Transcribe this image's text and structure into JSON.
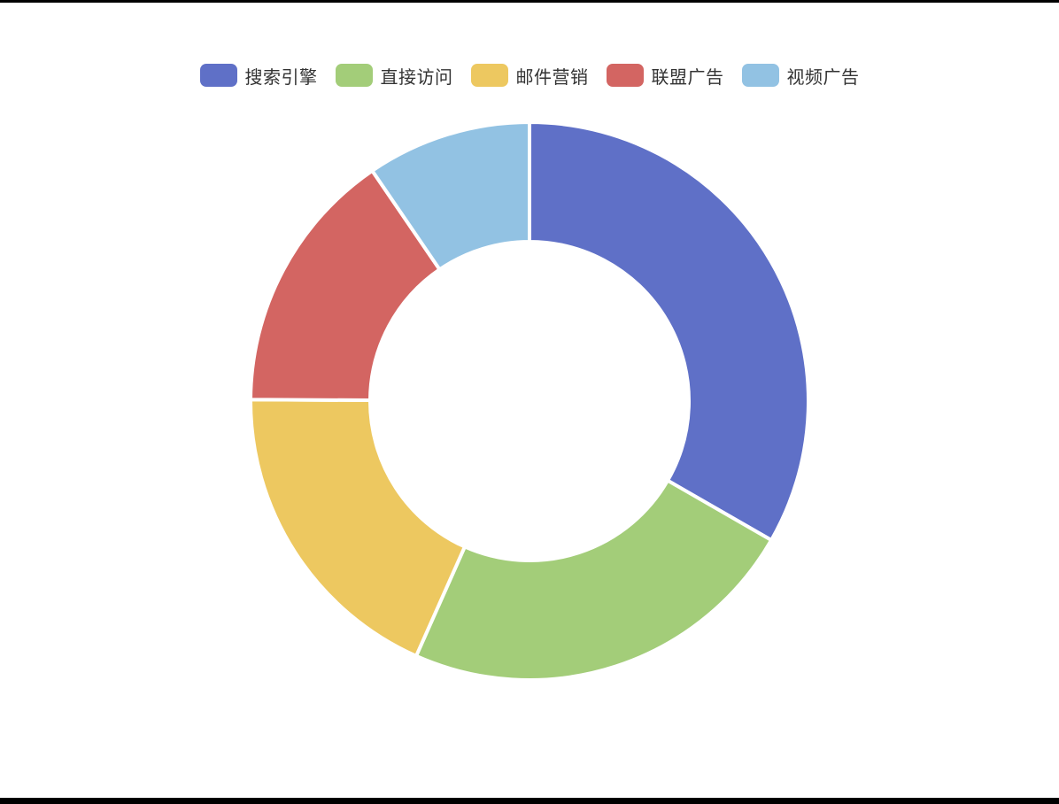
{
  "chart_data": {
    "type": "pie",
    "variant": "donut",
    "title": "",
    "legend_position": "top-center",
    "categories": [
      "搜索引擎",
      "直接访问",
      "邮件营销",
      "联盟广告",
      "视频广告"
    ],
    "values": [
      1048,
      735,
      580,
      484,
      300
    ],
    "colors": [
      "#5f70c7",
      "#a3cd79",
      "#edc860",
      "#d36562",
      "#92c2e3"
    ]
  }
}
